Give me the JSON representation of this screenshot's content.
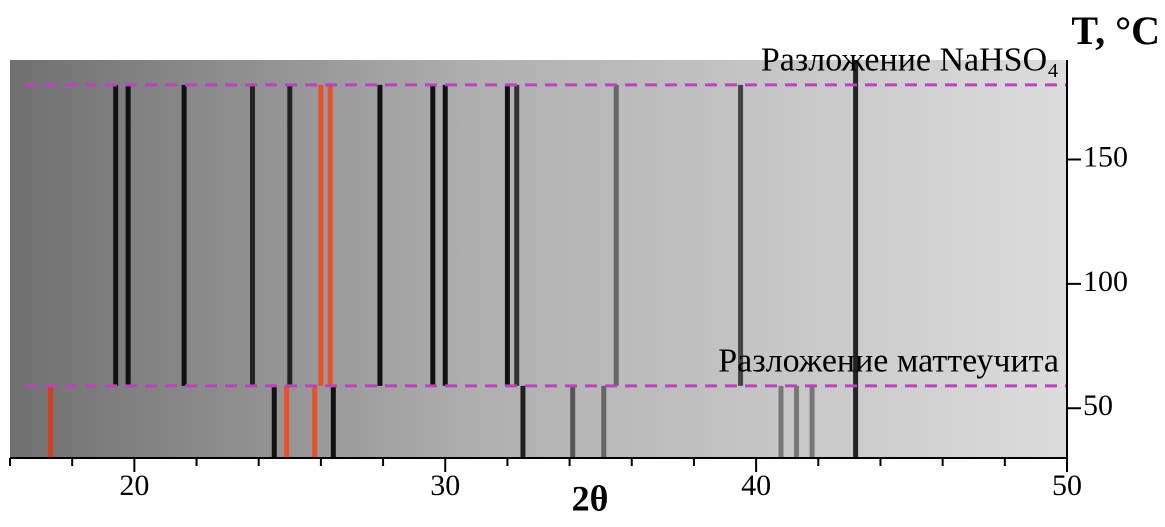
{
  "chart_data": {
    "type": "heatmap",
    "x_label": "2θ",
    "y_label": "T, °C",
    "xlim": [
      16,
      50
    ],
    "ylim": [
      30,
      190
    ],
    "xticks": [
      20,
      30,
      40,
      50
    ],
    "xticks_minor": [
      16,
      18,
      22,
      24,
      26,
      28,
      32,
      34,
      36,
      38,
      42,
      44,
      46,
      48
    ],
    "yticks": [
      50,
      100,
      150
    ],
    "annotations": [
      {
        "text": "Разложение NaHSO₄",
        "y": 180
      },
      {
        "text": "Разложение маттеучита",
        "y": 59
      }
    ],
    "annotation_color": "#c040c0",
    "lines": [
      {
        "x": 17.3,
        "y": [
          30,
          59
        ],
        "color": "#d04020"
      },
      {
        "x": 24.5,
        "y": [
          30,
          59
        ],
        "color": "#111111"
      },
      {
        "x": 24.9,
        "y": [
          30,
          59
        ],
        "color": "#e8502a"
      },
      {
        "x": 25.8,
        "y": [
          30,
          59
        ],
        "color": "#e8502a"
      },
      {
        "x": 26.4,
        "y": [
          30,
          59
        ],
        "color": "#111111"
      },
      {
        "x": 32.5,
        "y": [
          30,
          59
        ],
        "color": "#222222"
      },
      {
        "x": 34.1,
        "y": [
          30,
          59
        ],
        "color": "#555555"
      },
      {
        "x": 35.1,
        "y": [
          30,
          59
        ],
        "color": "#666666"
      },
      {
        "x": 40.8,
        "y": [
          30,
          59
        ],
        "color": "#777777"
      },
      {
        "x": 41.3,
        "y": [
          30,
          59
        ],
        "color": "#777777"
      },
      {
        "x": 41.8,
        "y": [
          30,
          59
        ],
        "color": "#777777"
      },
      {
        "x": 19.4,
        "y": [
          59,
          180
        ],
        "color": "#111111"
      },
      {
        "x": 19.8,
        "y": [
          59,
          180
        ],
        "color": "#111111"
      },
      {
        "x": 21.6,
        "y": [
          59,
          180
        ],
        "color": "#111111"
      },
      {
        "x": 23.8,
        "y": [
          59,
          180
        ],
        "color": "#222222"
      },
      {
        "x": 25.0,
        "y": [
          59,
          180
        ],
        "color": "#222222"
      },
      {
        "x": 26.0,
        "y": [
          59,
          180
        ],
        "color": "#e8502a"
      },
      {
        "x": 26.3,
        "y": [
          59,
          180
        ],
        "color": "#e8502a"
      },
      {
        "x": 27.9,
        "y": [
          59,
          180
        ],
        "color": "#111111"
      },
      {
        "x": 29.6,
        "y": [
          59,
          180
        ],
        "color": "#111111"
      },
      {
        "x": 30.0,
        "y": [
          59,
          180
        ],
        "color": "#111111"
      },
      {
        "x": 32.0,
        "y": [
          59,
          180
        ],
        "color": "#111111"
      },
      {
        "x": 32.3,
        "y": [
          59,
          180
        ],
        "color": "#333333"
      },
      {
        "x": 35.5,
        "y": [
          59,
          180
        ],
        "color": "#666666"
      },
      {
        "x": 39.5,
        "y": [
          59,
          180
        ],
        "color": "#444444"
      },
      {
        "x": 43.2,
        "y": [
          30,
          190
        ],
        "color": "#222222"
      }
    ]
  }
}
